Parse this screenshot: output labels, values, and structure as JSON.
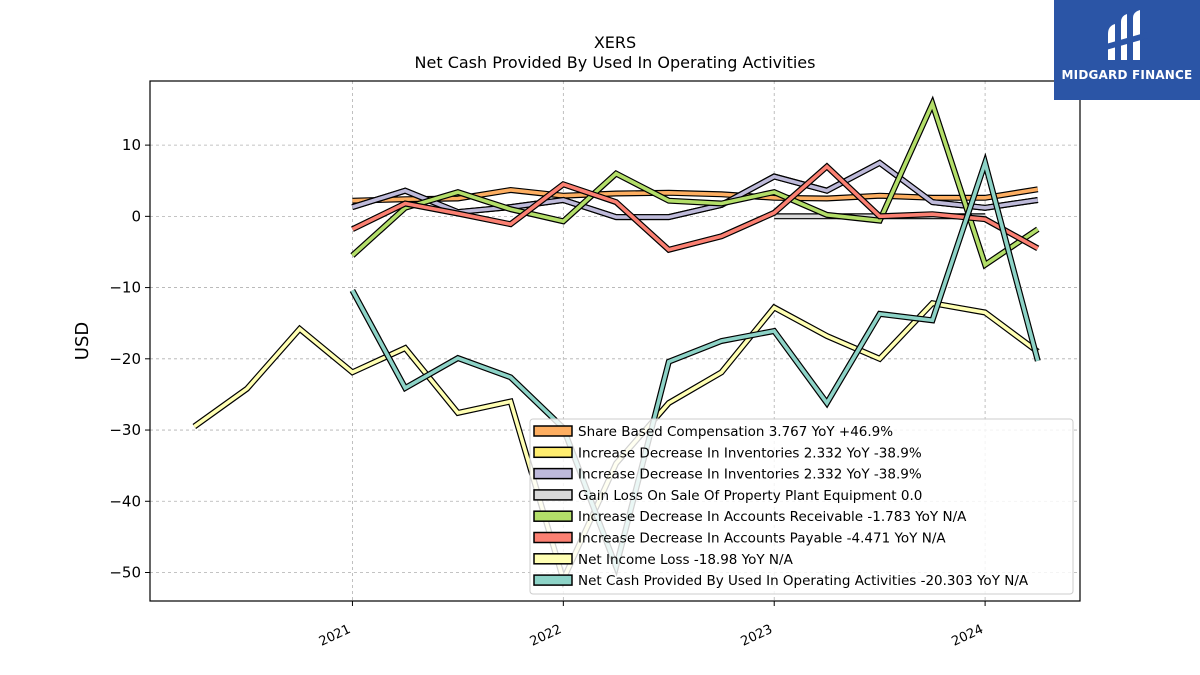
{
  "brand": {
    "name": "MIDGARD FINANCE",
    "bg_color": "#2b55a6"
  },
  "chart_data": {
    "type": "line",
    "title": "XERS",
    "subtitle": "Net Cash Provided By Used In Operating Activities",
    "ylabel": "USD",
    "xlabel": "",
    "x_ticks": [
      "2021",
      "2022",
      "2023",
      "2024"
    ],
    "y_ticks": [
      10,
      0,
      -10,
      -20,
      -30,
      -40,
      -50
    ],
    "xlim": [
      2020.04,
      2024.45
    ],
    "ylim": [
      -54.0,
      19.0
    ],
    "grid": true,
    "legend_position": "lower-right",
    "series": [
      {
        "name": "Share Based Compensation",
        "legend": "Share Based Compensation  3.767 YoY +46.9%",
        "color": "#fdae61",
        "x": [
          2021.0,
          2021.25,
          2021.5,
          2021.75,
          2022.0,
          2022.25,
          2022.5,
          2022.75,
          2023.0,
          2023.25,
          2023.5,
          2023.75,
          2024.0,
          2024.25
        ],
        "y": [
          2.2,
          2.4,
          2.5,
          3.7,
          2.9,
          3.2,
          3.3,
          3.1,
          2.6,
          2.5,
          2.9,
          2.6,
          2.6,
          3.8
        ]
      },
      {
        "name": "Increase Decrease In Inventories",
        "legend": "Increase Decrease In Inventories  2.332 YoY -38.9%",
        "color": "#ffed6f",
        "x": [
          2021.0,
          2021.25,
          2021.5,
          2021.75,
          2022.0,
          2022.25,
          2022.5,
          2022.75,
          2023.0,
          2023.25,
          2023.5,
          2023.75,
          2024.0,
          2024.25
        ],
        "y": [
          1.3,
          3.6,
          0.6,
          1.3,
          2.3,
          -0.1,
          -0.1,
          1.6,
          5.6,
          3.6,
          7.5,
          2.0,
          1.2,
          2.3
        ]
      },
      {
        "name": "Increase Decrease In Inventories",
        "legend": "Increase Decrease In Inventories  2.332 YoY -38.9%",
        "color": "#bebada",
        "x": [
          2021.0,
          2021.25,
          2021.5,
          2021.75,
          2022.0,
          2022.25,
          2022.5,
          2022.75,
          2023.0,
          2023.25,
          2023.5,
          2023.75,
          2024.0,
          2024.25
        ],
        "y": [
          1.3,
          3.6,
          0.6,
          1.3,
          2.3,
          -0.1,
          -0.1,
          1.6,
          5.6,
          3.6,
          7.5,
          2.0,
          1.2,
          2.3
        ]
      },
      {
        "name": "Gain Loss On Sale Of Property Plant Equipment",
        "legend": "Gain Loss On Sale Of Property Plant Equipment  0.0",
        "color": "#d9d9d9",
        "x": [
          2023.0,
          2023.25,
          2023.5,
          2023.75,
          2024.0
        ],
        "y": [
          0.0,
          0.0,
          0.0,
          0.0,
          0.0
        ]
      },
      {
        "name": "Increase Decrease In Accounts Receivable",
        "legend": "Increase Decrease In Accounts Receivable  -1.783 YoY N/A",
        "color": "#b3de69",
        "x": [
          2021.0,
          2021.25,
          2021.5,
          2021.75,
          2022.0,
          2022.25,
          2022.5,
          2022.75,
          2023.0,
          2023.25,
          2023.5,
          2023.75,
          2024.0,
          2024.25
        ],
        "y": [
          -5.5,
          1.2,
          3.4,
          1.0,
          -0.7,
          6.0,
          2.2,
          1.8,
          3.4,
          0.2,
          -0.6,
          15.8,
          -6.8,
          -1.8
        ]
      },
      {
        "name": "Increase Decrease In Accounts Payable",
        "legend": "Increase Decrease In Accounts Payable  -4.471 YoY N/A",
        "color": "#fb8072",
        "x": [
          2021.0,
          2021.25,
          2021.5,
          2021.75,
          2022.0,
          2022.25,
          2022.5,
          2022.75,
          2023.0,
          2023.25,
          2023.5,
          2023.75,
          2024.0,
          2024.25
        ],
        "y": [
          -1.8,
          1.8,
          0.4,
          -1.1,
          4.5,
          2.0,
          -4.7,
          -2.8,
          0.5,
          7.0,
          0.0,
          0.3,
          -0.4,
          -4.5
        ]
      },
      {
        "name": "Net Income Loss",
        "legend": "Net Income Loss  -18.98 YoY N/A",
        "color": "#ffffb3",
        "x": [
          2020.25,
          2020.5,
          2020.75,
          2021.0,
          2021.25,
          2021.5,
          2021.75,
          2022.0,
          2022.25,
          2022.5,
          2022.75,
          2023.0,
          2023.25,
          2023.5,
          2023.75,
          2024.0,
          2024.25
        ],
        "y": [
          -29.5,
          -24.2,
          -15.8,
          -21.9,
          -18.5,
          -27.6,
          -26.0,
          -51.0,
          -34.7,
          -26.2,
          -21.9,
          -12.8,
          -16.8,
          -20.0,
          -12.2,
          -13.5,
          -19.0
        ]
      },
      {
        "name": "Net Cash Provided By Used In Operating Activities",
        "legend": "Net Cash Provided By Used In Operating Activities  -20.303 YoY N/A",
        "color": "#8dd3c7",
        "x": [
          2021.0,
          2021.25,
          2021.5,
          2021.75,
          2022.0,
          2022.25,
          2022.5,
          2022.75,
          2023.0,
          2023.25,
          2023.5,
          2023.75,
          2024.0,
          2024.25
        ],
        "y": [
          -10.4,
          -24.1,
          -19.9,
          -22.6,
          -29.7,
          -49.2,
          -20.4,
          -17.5,
          -16.1,
          -26.2,
          -13.7,
          -14.6,
          7.5,
          -20.3
        ]
      }
    ]
  }
}
